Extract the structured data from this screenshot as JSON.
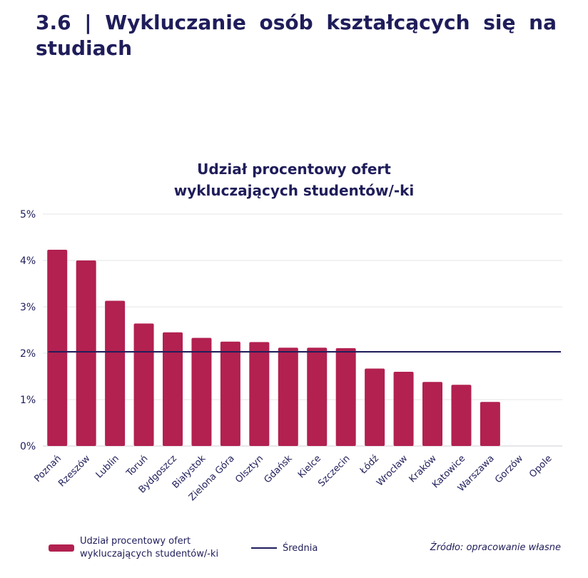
{
  "heading": "3.6 | Wykluczanie osób kształcących się na studiach",
  "chart_data": {
    "type": "bar",
    "title_lines": [
      "Udział procentowy ofert",
      "wykluczających studentów/-ki"
    ],
    "categories": [
      "Poznań",
      "Rzeszów",
      "Lublin",
      "Toruń",
      "Bydgoszcz",
      "Białystok",
      "Zielona Góra",
      "Olsztyn",
      "Gdańsk",
      "Kielce",
      "Szczecin",
      "Łódź",
      "Wrocław",
      "Kraków",
      "Katowice",
      "Warszawa",
      "Gorzów",
      "Opole"
    ],
    "series": [
      {
        "name": "Udział procentowy ofert wykluczających studentów/-ki",
        "color": "#b22150",
        "values": [
          4.23,
          4.0,
          3.13,
          2.64,
          2.45,
          2.33,
          2.25,
          2.24,
          2.12,
          2.12,
          2.11,
          1.67,
          1.6,
          1.38,
          1.32,
          0.95,
          0,
          0
        ]
      }
    ],
    "average": {
      "name": "Średnia",
      "value": 2.03,
      "color": "#1f1d5a"
    },
    "ylim": [
      0,
      5
    ],
    "yticks": [
      0,
      1,
      2,
      3,
      4,
      5
    ],
    "ytick_labels": [
      "0%",
      "1%",
      "2%",
      "3%",
      "4%",
      "5%"
    ],
    "grid": true,
    "legend_position": "bottom-left"
  },
  "legend": {
    "bar_label": "Udział procentowy ofert wykluczających studentów/-ki",
    "line_label": "Średnia"
  },
  "source": "Źródło: opracowanie własne"
}
